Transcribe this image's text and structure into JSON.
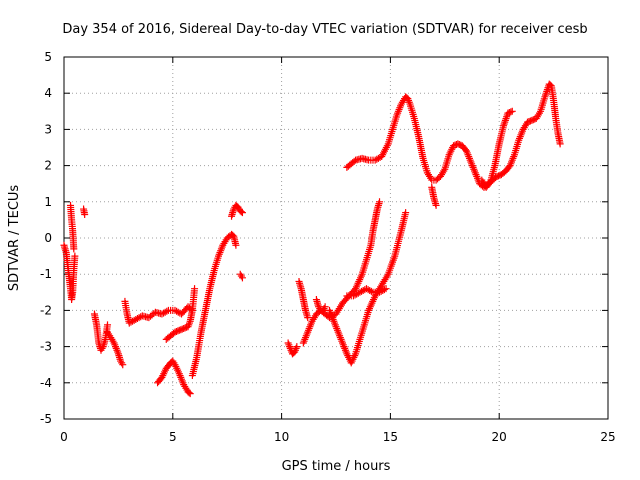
{
  "chart_data": {
    "type": "scatter",
    "title": "Day 354 of 2016, Sidereal Day-to-day VTEC variation (SDTVAR) for receiver cesb",
    "xlabel": "GPS time / hours",
    "ylabel": "SDTVAR / TECUs",
    "xlim": [
      0,
      25
    ],
    "ylim": [
      -5,
      5
    ],
    "xticks": [
      "0",
      "5",
      "10",
      "15",
      "20",
      "25"
    ],
    "yticks": [
      "-5",
      "-4",
      "-3",
      "-2",
      "-1",
      "0",
      "1",
      "2",
      "3",
      "4",
      "5"
    ],
    "grid": true,
    "marker": "plus",
    "color": "#ff0000",
    "segments": [
      {
        "x": [
          0.0,
          0.1,
          0.2,
          0.3,
          0.35,
          0.4,
          0.45,
          0.5
        ],
        "y": [
          -0.2,
          -0.4,
          -0.9,
          -1.4,
          -1.7,
          -1.5,
          -0.9,
          -0.5
        ]
      },
      {
        "x": [
          0.3,
          0.35,
          0.4,
          0.45
        ],
        "y": [
          0.9,
          0.5,
          0.2,
          -0.3
        ]
      },
      {
        "x": [
          0.9,
          0.95
        ],
        "y": [
          0.8,
          0.65
        ]
      },
      {
        "x": [
          1.4,
          1.5,
          1.6,
          1.7,
          1.8,
          1.9,
          2.0
        ],
        "y": [
          -2.1,
          -2.4,
          -2.9,
          -3.1,
          -3.0,
          -2.8,
          -2.4
        ]
      },
      {
        "x": [
          2.0,
          2.1,
          2.3,
          2.5,
          2.6,
          2.7
        ],
        "y": [
          -2.6,
          -2.7,
          -2.9,
          -3.2,
          -3.4,
          -3.5
        ]
      },
      {
        "x": [
          2.8,
          2.9,
          3.0,
          3.3,
          3.6,
          3.9,
          4.2,
          4.5,
          4.8,
          5.1,
          5.4,
          5.7,
          5.9
        ],
        "y": [
          -1.75,
          -2.1,
          -2.35,
          -2.25,
          -2.15,
          -2.2,
          -2.05,
          -2.1,
          -2.0,
          -2.0,
          -2.1,
          -1.9,
          -2.0
        ]
      },
      {
        "x": [
          4.3,
          4.5,
          4.7,
          4.9,
          5.0,
          5.1,
          5.3,
          5.5,
          5.7,
          5.8
        ],
        "y": [
          -4.0,
          -3.85,
          -3.6,
          -3.45,
          -3.4,
          -3.5,
          -3.75,
          -4.05,
          -4.25,
          -4.3
        ]
      },
      {
        "x": [
          4.7,
          4.9,
          5.1,
          5.3,
          5.5,
          5.7,
          5.8,
          5.9,
          6.0
        ],
        "y": [
          -2.8,
          -2.7,
          -2.6,
          -2.55,
          -2.5,
          -2.45,
          -2.3,
          -2.0,
          -1.4
        ]
      },
      {
        "x": [
          5.9,
          6.1,
          6.3,
          6.5,
          6.7,
          6.9,
          7.1,
          7.3,
          7.5,
          7.7,
          7.8,
          7.9
        ],
        "y": [
          -3.8,
          -3.3,
          -2.6,
          -2.0,
          -1.4,
          -0.9,
          -0.5,
          -0.2,
          0.0,
          0.1,
          0.05,
          -0.2
        ]
      },
      {
        "x": [
          7.7,
          7.8,
          7.9,
          8.0,
          8.1,
          8.2
        ],
        "y": [
          0.6,
          0.8,
          0.9,
          0.85,
          0.75,
          0.7
        ]
      },
      {
        "x": [
          8.1,
          8.2
        ],
        "y": [
          -1.0,
          -1.1
        ]
      },
      {
        "x": [
          10.3,
          10.4,
          10.5,
          10.6,
          10.7
        ],
        "y": [
          -2.9,
          -3.05,
          -3.2,
          -3.15,
          -3.0
        ]
      },
      {
        "x": [
          10.8,
          10.9,
          11.0,
          11.1,
          11.2
        ],
        "y": [
          -1.2,
          -1.4,
          -1.7,
          -2.0,
          -2.2
        ]
      },
      {
        "x": [
          11.0,
          11.2,
          11.4,
          11.6,
          11.8,
          12.0,
          12.2,
          12.5,
          12.8,
          13.1,
          13.4,
          13.7,
          13.9,
          14.1,
          14.2,
          14.3,
          14.4,
          14.5
        ],
        "y": [
          -2.9,
          -2.6,
          -2.3,
          -2.1,
          -2.0,
          -2.1,
          -2.2,
          -2.1,
          -1.8,
          -1.6,
          -1.4,
          -1.0,
          -0.6,
          -0.2,
          0.2,
          0.5,
          0.8,
          1.0
        ]
      },
      {
        "x": [
          11.6,
          11.7,
          11.8,
          11.9,
          12.0
        ],
        "y": [
          -1.7,
          -1.9,
          -2.0,
          -2.0,
          -1.9
        ]
      },
      {
        "x": [
          12.2,
          12.4,
          12.6,
          12.8,
          13.0,
          13.2,
          13.4,
          13.6,
          13.8,
          14.0,
          14.3,
          14.6,
          14.9,
          15.2,
          15.5,
          15.7
        ],
        "y": [
          -2.0,
          -2.3,
          -2.6,
          -2.9,
          -3.2,
          -3.45,
          -3.2,
          -2.8,
          -2.4,
          -2.0,
          -1.6,
          -1.3,
          -1.0,
          -0.5,
          0.2,
          0.7
        ]
      },
      {
        "x": [
          13.0,
          13.3,
          13.6,
          13.9,
          14.2,
          14.5,
          14.8
        ],
        "y": [
          -1.6,
          -1.6,
          -1.5,
          -1.4,
          -1.5,
          -1.5,
          -1.4
        ]
      },
      {
        "x": [
          13.0,
          13.2,
          13.4,
          13.7,
          14.0,
          14.3,
          14.6,
          14.9,
          15.1,
          15.3,
          15.5,
          15.7,
          15.8,
          15.9,
          16.1,
          16.3,
          16.5,
          16.7,
          16.9,
          17.1,
          17.3,
          17.5,
          17.7,
          17.9,
          18.1,
          18.3,
          18.5,
          18.7,
          18.9,
          19.1,
          19.3,
          19.5,
          19.7,
          19.9,
          20.1,
          20.3,
          20.5,
          20.7,
          20.9,
          21.1,
          21.3,
          21.5,
          21.7,
          21.9,
          22.1,
          22.3,
          22.4,
          22.5,
          22.6,
          22.7,
          22.8
        ],
        "y": [
          1.95,
          2.05,
          2.15,
          2.2,
          2.15,
          2.15,
          2.25,
          2.6,
          3.0,
          3.4,
          3.7,
          3.9,
          3.85,
          3.7,
          3.3,
          2.8,
          2.2,
          1.8,
          1.6,
          1.6,
          1.7,
          1.9,
          2.3,
          2.55,
          2.6,
          2.55,
          2.4,
          2.1,
          1.8,
          1.5,
          1.4,
          1.5,
          1.6,
          1.7,
          1.75,
          1.85,
          2.0,
          2.3,
          2.7,
          3.0,
          3.2,
          3.25,
          3.3,
          3.5,
          3.9,
          4.25,
          4.2,
          3.8,
          3.3,
          2.9,
          2.6
        ]
      },
      {
        "x": [
          16.9,
          17.0,
          17.1
        ],
        "y": [
          1.4,
          1.1,
          0.9
        ]
      },
      {
        "x": [
          19.2,
          19.4,
          19.6,
          19.8,
          20.0,
          20.2,
          20.4,
          20.6
        ],
        "y": [
          1.6,
          1.4,
          1.55,
          2.0,
          2.6,
          3.1,
          3.45,
          3.5
        ]
      }
    ]
  }
}
